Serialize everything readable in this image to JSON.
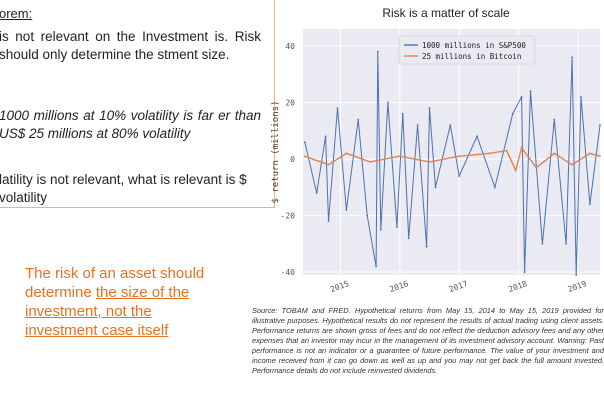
{
  "theorem": {
    "heading": "orem:",
    "para1": "is not relevant on the Investment is. Risk should only determine the stment size.",
    "para2": "1000 millions at 10% volatility is far er than US$ 25 millions at 80% volatility",
    "para3": "latility is not relevant, what is relevant is $ volatility"
  },
  "callout": {
    "line1": "The risk of an asset should",
    "line2_prefix": "determine ",
    "line2_link": "the size of the",
    "line3": "investment, not the",
    "line4": "investment case itself"
  },
  "source_note": "Source: TOBAM and FRED. Hypothetical returns from May 15, 2014 to May 15, 2019 provided for illustrative purposes. Hypothetical results do not represent the results of actual trading using client assets. Performance returns are shown gross of fees and do not reflect the deduction advisory fees and any other expenses that an investor may incur in the management of its investment advisory account. Warning: Past performance is not an indicator or a guarantee of future performance. The value of your investment and income received from it can go down as well as up and you may not get back the full amount invested. Performance details do not include reinvested dividends.",
  "colors": {
    "accent_orange": "#e8721f",
    "series_sp500": "#4c72b0",
    "series_btc": "#dd8452",
    "plot_bg": "#eaeaf2"
  },
  "chart_data": {
    "type": "line",
    "title": "Risk is a matter of scale",
    "ylabel": "$ return (millions)",
    "xlabel": "",
    "ylim": [
      -41,
      46
    ],
    "xlim": [
      2014.37,
      2019.37
    ],
    "yticks": [
      -40,
      -20,
      0,
      20,
      40
    ],
    "xticks": [
      "2015",
      "2016",
      "2017",
      "2018",
      "2019"
    ],
    "grid": true,
    "legend": "top",
    "series": [
      {
        "name": "1000 millions in S&P500",
        "x": [
          2014.4,
          2014.6,
          2014.75,
          2014.8,
          2014.95,
          2015.1,
          2015.3,
          2015.45,
          2015.6,
          2015.63,
          2015.68,
          2015.8,
          2015.95,
          2016.05,
          2016.15,
          2016.3,
          2016.45,
          2016.5,
          2016.6,
          2016.85,
          2017.0,
          2017.3,
          2017.6,
          2017.9,
          2018.05,
          2018.1,
          2018.2,
          2018.4,
          2018.6,
          2018.8,
          2018.9,
          2018.97,
          2019.05,
          2019.2,
          2019.37
        ],
        "values": [
          6,
          -12,
          8,
          -22,
          18,
          -18,
          14,
          -20,
          -38,
          38,
          -25,
          20,
          -24,
          16,
          -28,
          12,
          -31,
          18,
          -10,
          12,
          -6,
          8,
          -10,
          16,
          22,
          -40,
          24,
          -30,
          14,
          -30,
          36,
          -41,
          22,
          -16,
          12
        ]
      },
      {
        "name": "25 millions in Bitcoin",
        "x": [
          2014.4,
          2014.8,
          2015.1,
          2015.5,
          2016.0,
          2016.5,
          2017.0,
          2017.5,
          2017.8,
          2017.95,
          2018.05,
          2018.3,
          2018.6,
          2018.9,
          2019.2,
          2019.37
        ],
        "values": [
          1,
          -2,
          2,
          -1,
          1,
          -1,
          1,
          2,
          3,
          -4,
          4,
          -3,
          2,
          -2,
          2,
          1
        ]
      }
    ]
  }
}
